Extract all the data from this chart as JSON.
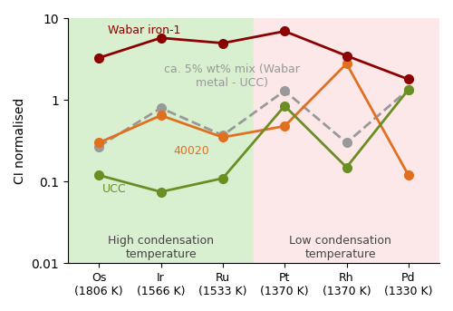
{
  "x_labels": [
    "Os\n(1806 K)",
    "Ir\n(1566 K)",
    "Ru\n(1533 K)",
    "Pt\n(1370 K)",
    "Rh\n(1370 K)",
    "Pd\n(1330 K)"
  ],
  "x_positions": [
    0,
    1,
    2,
    3,
    4,
    5
  ],
  "series": {
    "Wabar iron-1": {
      "values": [
        3.3,
        5.8,
        5.0,
        7.0,
        3.5,
        1.8
      ],
      "color": "#8B0000",
      "linewidth": 2.0,
      "markersize": 7,
      "linestyle": "-",
      "zorder": 5
    },
    "40020": {
      "values": [
        0.3,
        0.65,
        0.35,
        0.48,
        2.8,
        0.12
      ],
      "color": "#E07020",
      "linewidth": 2.0,
      "markersize": 7,
      "linestyle": "-",
      "zorder": 4
    },
    "UCC": {
      "values": [
        0.12,
        0.075,
        0.11,
        0.85,
        0.15,
        1.35
      ],
      "color": "#6B8E23",
      "linewidth": 2.0,
      "markersize": 7,
      "linestyle": "-",
      "zorder": 4
    },
    "mix": {
      "values": [
        0.27,
        0.8,
        0.37,
        1.3,
        0.3,
        1.35
      ],
      "color": "#999999",
      "linewidth": 2.0,
      "markersize": 7,
      "linestyle": "--",
      "zorder": 3
    }
  },
  "ylabel": "CI normalised",
  "ylim": [
    0.01,
    10
  ],
  "yticks": [
    0.01,
    0.1,
    1,
    10
  ],
  "high_condensation_region": [
    0,
    2
  ],
  "low_condensation_region": [
    2,
    5
  ],
  "high_color": "#d8f0d0",
  "low_color": "#fce8e8",
  "title_text": "Wabar iron-1",
  "title_color": "#8B0000",
  "label_40020": "40020",
  "label_40020_color": "#E07020",
  "label_UCC": "UCC",
  "label_UCC_color": "#6B8E23",
  "label_mix": "ca. 5% wt% mix (Wabar\nmetal - UCC)",
  "label_mix_color": "#999999"
}
